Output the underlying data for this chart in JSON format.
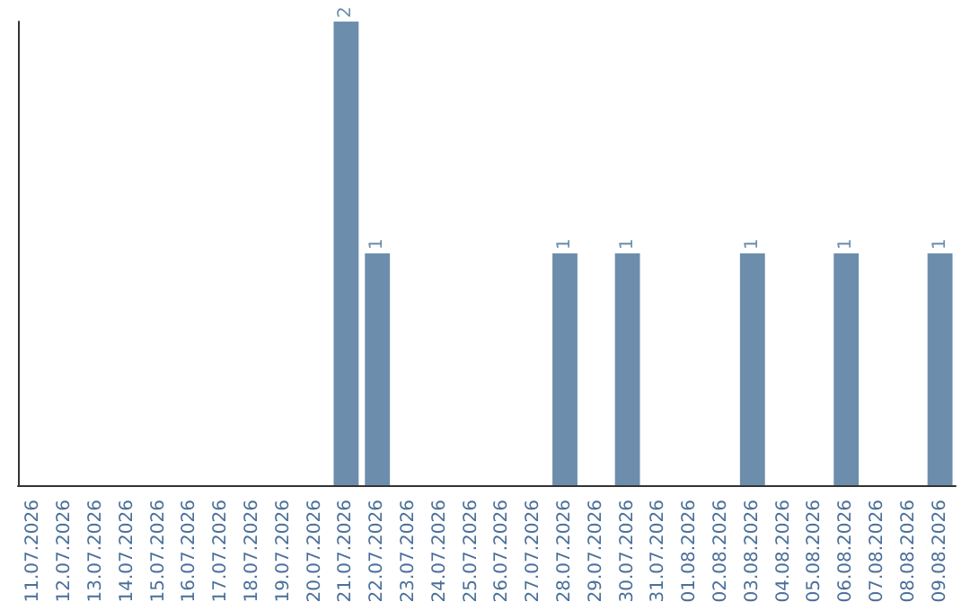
{
  "chart_data": {
    "type": "bar",
    "categories": [
      "11.07.2026",
      "12.07.2026",
      "13.07.2026",
      "14.07.2026",
      "15.07.2026",
      "16.07.2026",
      "17.07.2026",
      "18.07.2026",
      "19.07.2026",
      "20.07.2026",
      "21.07.2026",
      "22.07.2026",
      "23.07.2026",
      "24.07.2026",
      "25.07.2026",
      "26.07.2026",
      "27.07.2026",
      "28.07.2026",
      "29.07.2026",
      "30.07.2026",
      "31.07.2026",
      "01.08.2026",
      "02.08.2026",
      "03.08.2026",
      "04.08.2026",
      "05.08.2026",
      "06.08.2026",
      "07.08.2026",
      "08.08.2026",
      "09.08.2026"
    ],
    "values": [
      0,
      0,
      0,
      0,
      0,
      0,
      0,
      0,
      0,
      0,
      2,
      1,
      0,
      0,
      0,
      0,
      0,
      1,
      0,
      1,
      0,
      0,
      0,
      1,
      0,
      0,
      1,
      0,
      0,
      1
    ],
    "value_labels": [
      null,
      null,
      null,
      null,
      null,
      null,
      null,
      null,
      null,
      null,
      "2",
      "1",
      null,
      null,
      null,
      null,
      null,
      "1",
      null,
      "1",
      null,
      null,
      null,
      "1",
      null,
      null,
      "1",
      null,
      null,
      "1"
    ],
    "color": "#6c8eac",
    "ylim": [
      0,
      2
    ],
    "tick_labels": "x",
    "grid": false
  }
}
